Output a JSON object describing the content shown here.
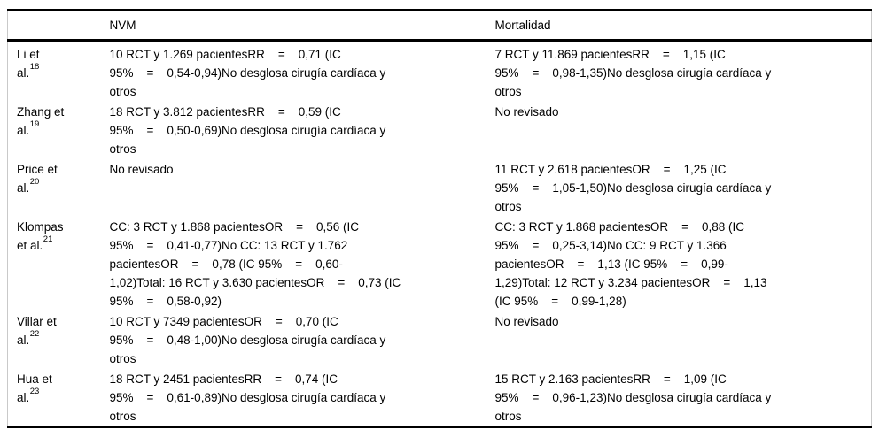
{
  "table": {
    "header": {
      "study": "",
      "nvm": "NVM",
      "mortalidad": "Mortalidad"
    },
    "rows": [
      {
        "study": "Li et\nal.",
        "ref": "18",
        "nvm": "10 RCT y 1.269 pacientesRR    =    0,71 (IC\n95%    =    0,54-0,94)No desglosa cirugía cardíaca y\notros",
        "mortalidad": "7 RCT y 11.869 pacientesRR    =    1,15 (IC\n95%    =    0,98-1,35)No desglosa cirugía cardíaca y\notros"
      },
      {
        "study": "Zhang et\nal.",
        "ref": "19",
        "nvm": "18 RCT y 3.812 pacientesRR    =    0,59 (IC\n95%    =    0,50-0,69)No desglosa cirugía cardíaca y\notros",
        "mortalidad": "No revisado"
      },
      {
        "study": "Price et\nal.",
        "ref": "20",
        "nvm": "No revisado",
        "mortalidad": "11 RCT y 2.618 pacientesOR    =    1,25 (IC\n95%    =    1,05-1,50)No desglosa cirugía cardíaca y\notros"
      },
      {
        "study": "Klompas\net al.",
        "ref": "21",
        "nvm": "CC: 3 RCT y 1.868 pacientesOR    =    0,56 (IC\n95%    =    0,41-0,77)No CC: 13 RCT y 1.762\npacientesOR    =    0,78 (IC 95%    =    0,60-\n1,02)Total: 16 RCT y 3.630 pacientesOR    =    0,73 (IC\n95%    =    0,58-0,92)",
        "mortalidad": "CC: 3 RCT y 1.868 pacientesOR    =    0,88 (IC\n95%    =    0,25-3,14)No CC: 9 RCT y 1.366\npacientesOR    =    1,13 (IC 95%    =    0,99-\n1,29)Total: 12 RCT y 3.234 pacientesOR    =    1,13\n(IC 95%    =    0,99-1,28)"
      },
      {
        "study": "Villar et\nal.",
        "ref": "22",
        "nvm": "10 RCT y 7349 pacientesOR    =    0,70 (IC\n95%    =    0,48-1,00)No desglosa cirugía cardíaca y\notros",
        "mortalidad": "No revisado"
      },
      {
        "study": "Hua et\nal.",
        "ref": "23",
        "nvm": "18 RCT y 2451 pacientesRR    =    0,74 (IC\n95%    =    0,61-0,89)No desglosa cirugía cardíaca y\notros",
        "mortalidad": "15 RCT y 2.163 pacientesRR    =    1,09 (IC\n95%    =    0,96-1,23)No desglosa cirugía cardíaca y\notros"
      }
    ]
  }
}
